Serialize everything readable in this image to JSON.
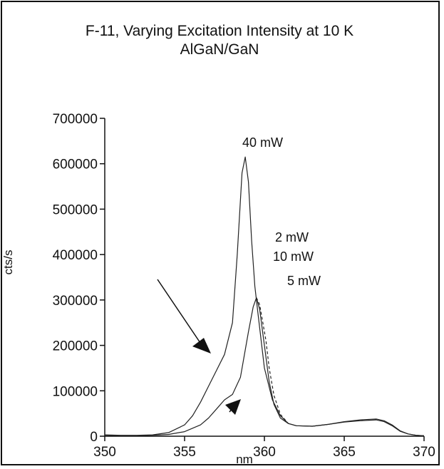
{
  "chart_data": {
    "type": "line",
    "title": "F-11, Varying Excitation Intensity at 10 K",
    "subtitle": "AlGaN/GaN",
    "xlabel": "nm",
    "ylabel": "cts/s",
    "xlim": [
      350,
      370
    ],
    "ylim": [
      0,
      700000
    ],
    "x_ticks": [
      "350",
      "355",
      "360",
      "365",
      "370"
    ],
    "y_ticks": [
      "0",
      "100000",
      "200000",
      "300000",
      "400000",
      "500000",
      "600000",
      "700000"
    ],
    "grid": false,
    "legend": "none",
    "series": [
      {
        "name": "40 mW",
        "style": "solid",
        "x": [
          350.0,
          351.0,
          352.0,
          353.0,
          354.0,
          355.0,
          355.5,
          356.0,
          356.5,
          357.0,
          357.5,
          358.0,
          358.3,
          358.6,
          358.8,
          359.0,
          359.2,
          359.4,
          359.6,
          359.8,
          360.0,
          360.5,
          361.0,
          361.5,
          362.0,
          363.0,
          364.0,
          365.0,
          366.0,
          367.0,
          367.5,
          368.0,
          368.5,
          369.0,
          369.5,
          370.0
        ],
        "values": [
          3000,
          2000,
          2000,
          3000,
          8000,
          25000,
          45000,
          75000,
          110000,
          145000,
          180000,
          250000,
          400000,
          580000,
          615000,
          560000,
          430000,
          330000,
          270000,
          210000,
          150000,
          80000,
          45000,
          28000,
          23000,
          22000,
          26000,
          32000,
          36000,
          38000,
          34000,
          25000,
          12000,
          5000,
          2000,
          1000
        ]
      },
      {
        "name": "5 mW",
        "style": "solid",
        "x": [
          350.0,
          351.0,
          352.0,
          353.0,
          354.0,
          355.0,
          356.0,
          356.5,
          357.0,
          357.5,
          358.0,
          358.5,
          359.0,
          359.3,
          359.5,
          359.7,
          360.0,
          360.3,
          360.6,
          361.0,
          361.5,
          362.0,
          363.0,
          364.0,
          365.0,
          366.0,
          367.0,
          367.5,
          368.0,
          368.5,
          369.0,
          369.5,
          370.0
        ],
        "values": [
          2000,
          1000,
          1000,
          2000,
          4000,
          10000,
          25000,
          40000,
          60000,
          80000,
          92000,
          130000,
          230000,
          285000,
          305000,
          280000,
          200000,
          120000,
          70000,
          40000,
          28000,
          23000,
          22000,
          26000,
          31000,
          34000,
          36000,
          32000,
          23000,
          11000,
          5000,
          2000,
          1000
        ]
      },
      {
        "name": "10 mW",
        "style": "dashed",
        "x": [
          359.5,
          359.7,
          359.9,
          360.1,
          360.3,
          360.6,
          361.0,
          361.5
        ],
        "values": [
          305000,
          290000,
          250000,
          210000,
          150000,
          90000,
          48000,
          28000
        ]
      }
    ],
    "annotations": [
      "40 mW",
      "2 mW",
      "10 mW",
      "5 mW"
    ]
  }
}
